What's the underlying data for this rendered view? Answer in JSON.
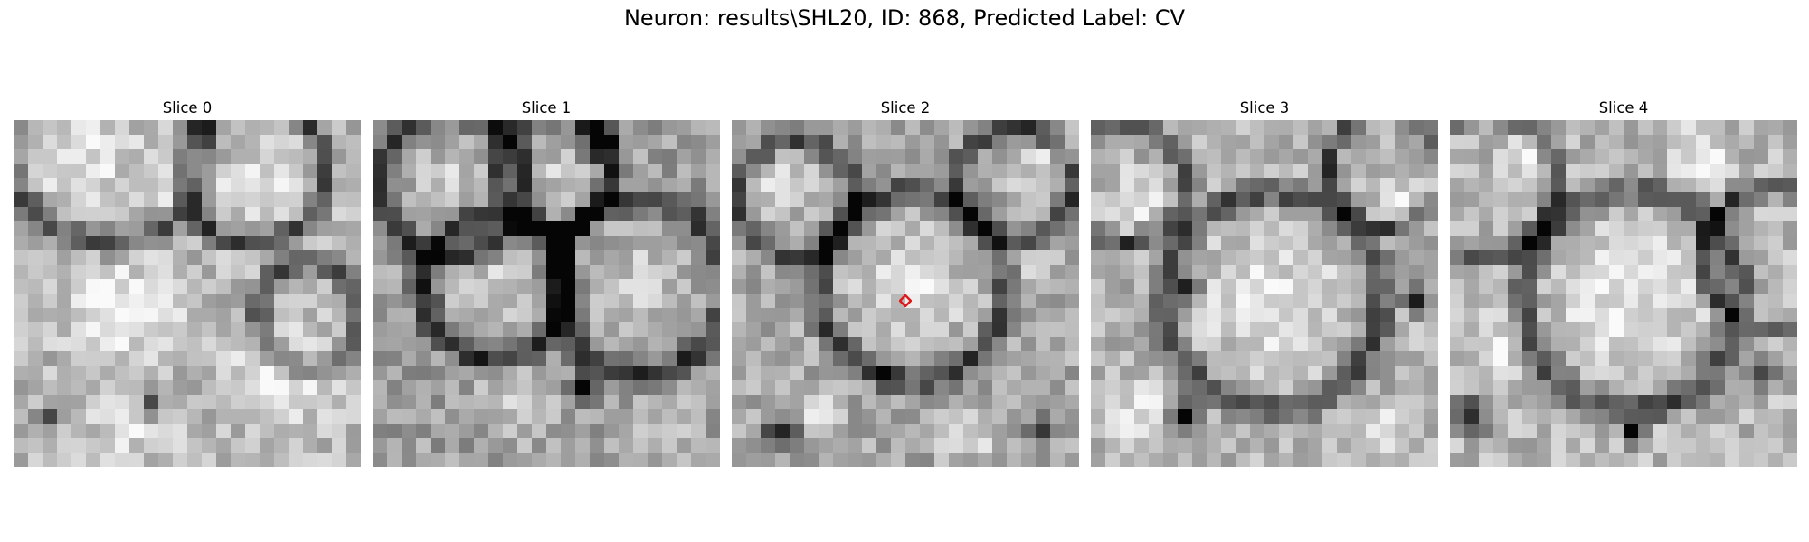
{
  "figure": {
    "title": "Neuron: results\\SHL20, ID: 868, Predicted Label: CV"
  },
  "panels": [
    {
      "title": "Slice 0"
    },
    {
      "title": "Slice 1"
    },
    {
      "title": "Slice 2"
    },
    {
      "title": "Slice 3"
    },
    {
      "title": "Slice 4"
    }
  ],
  "marker": {
    "slice": 2,
    "color": "#e0191b",
    "shape": "diamond"
  }
}
